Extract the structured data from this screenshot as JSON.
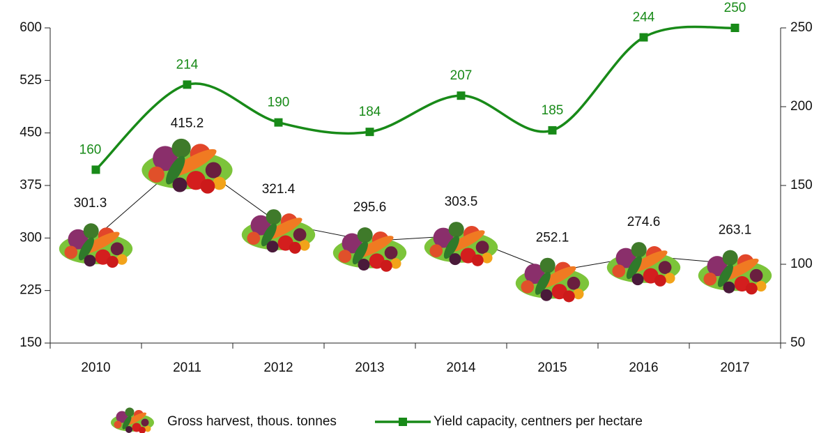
{
  "chart_data": {
    "type": "line",
    "categories": [
      "2010",
      "2011",
      "2012",
      "2013",
      "2014",
      "2015",
      "2016",
      "2017"
    ],
    "series": [
      {
        "name": "Gross harvest, thous. tonnes",
        "values": [
          301.3,
          415.2,
          321.4,
          295.6,
          303.5,
          252.1,
          274.6,
          263.1
        ]
      },
      {
        "name": "Yield capacity, centners per hectare",
        "color": "#188a18",
        "axis": "y2",
        "values": [
          160,
          214,
          190,
          184,
          207,
          185,
          244,
          250
        ]
      }
    ],
    "ylim": [
      150,
      600
    ],
    "yticks": [
      150,
      225,
      300,
      375,
      450,
      525,
      600
    ],
    "y2lim": [
      50,
      250
    ],
    "y2ticks": [
      50,
      100,
      150,
      200,
      250
    ]
  }
}
